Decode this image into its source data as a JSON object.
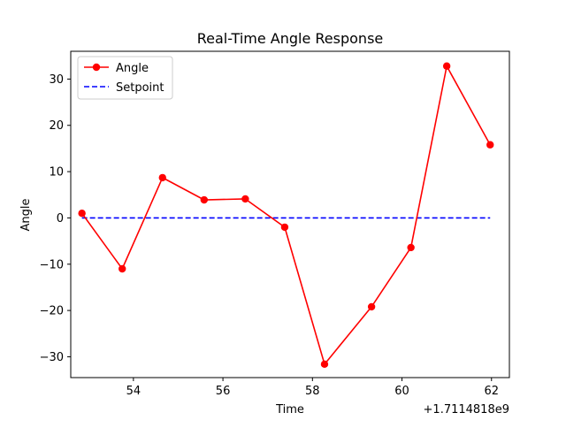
{
  "chart_data": {
    "type": "line",
    "title": "Real-Time Angle Response",
    "xlabel": "Time",
    "ylabel": "Angle",
    "x_offset_label": "+1.7114818e9",
    "xlim": [
      52.6,
      62.4
    ],
    "ylim": [
      -34.5,
      36.0
    ],
    "x_ticks": [
      54,
      56,
      58,
      60,
      62
    ],
    "x_tick_labels": [
      "54",
      "56",
      "58",
      "60",
      "62"
    ],
    "y_ticks": [
      -30,
      -20,
      -10,
      0,
      10,
      20,
      30
    ],
    "y_tick_labels": [
      "−30",
      "−20",
      "−10",
      "0",
      "10",
      "20",
      "30"
    ],
    "grid": false,
    "legend_position": "top-left",
    "series": [
      {
        "name": "Angle",
        "color": "#ff0000",
        "line_style": "solid",
        "marker": "circle",
        "x": [
          52.85,
          53.75,
          54.65,
          55.58,
          56.5,
          57.38,
          58.27,
          59.32,
          60.2,
          61.0,
          61.97
        ],
        "y": [
          1.0,
          -11.0,
          8.7,
          3.9,
          4.1,
          -2.0,
          -31.6,
          -19.2,
          -6.4,
          32.8,
          15.8
        ]
      },
      {
        "name": "Setpoint",
        "color": "#0000ff",
        "line_style": "dashed",
        "marker": "none",
        "x": [
          52.85,
          61.97
        ],
        "y": [
          0,
          0
        ]
      }
    ]
  }
}
